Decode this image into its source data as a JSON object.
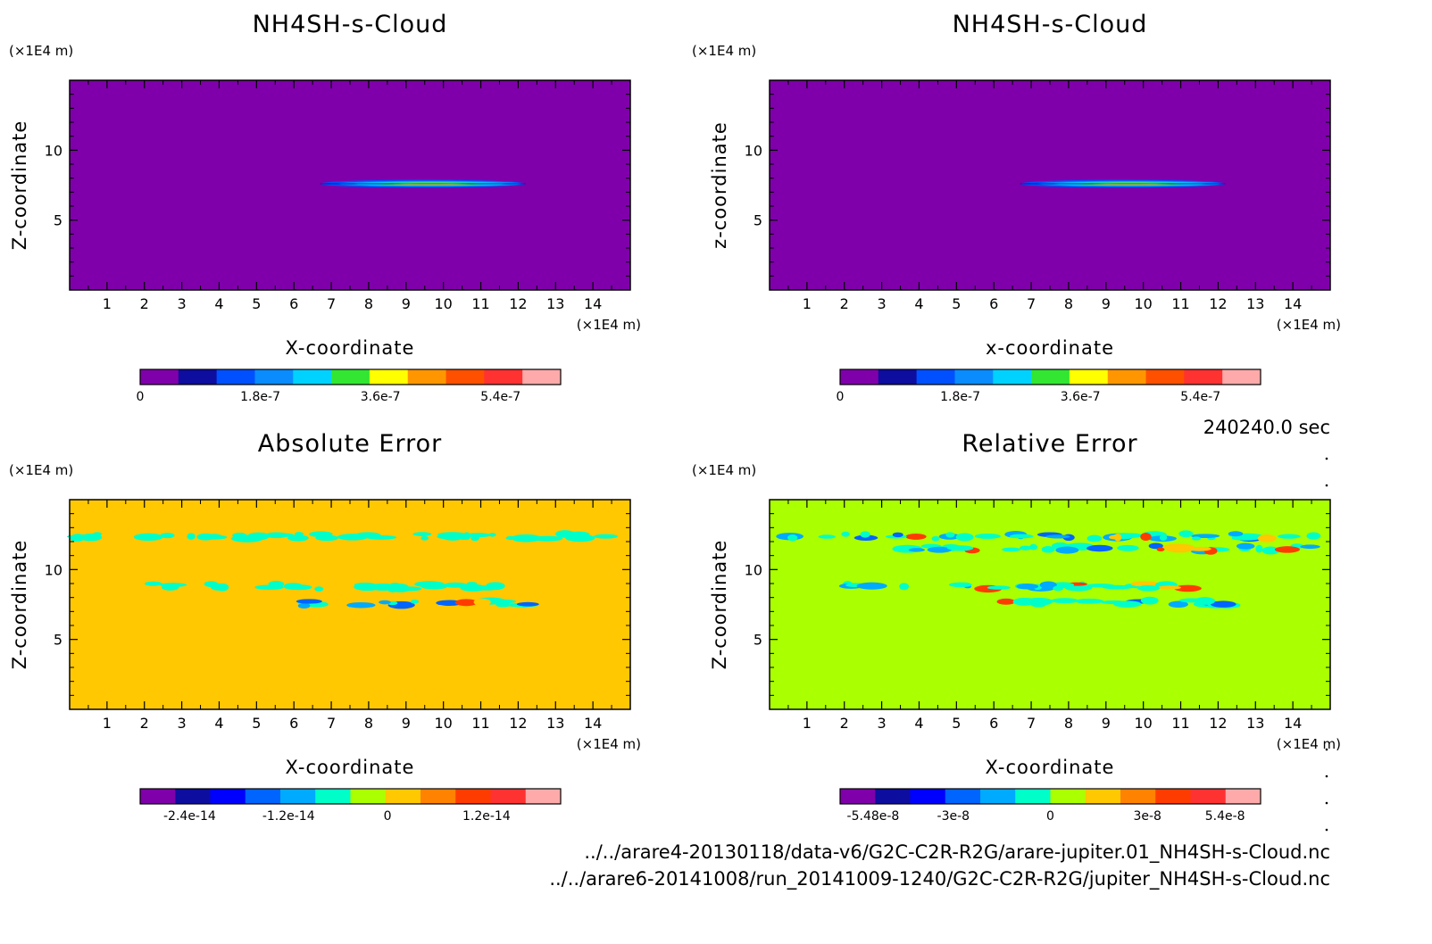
{
  "time_label": "240240.0 sec",
  "file_paths": [
    "../../arare4-20130118/data-v6/G2C-C2R-R2G/arare-jupiter.01_NH4SH-s-Cloud.nc",
    "../../arare6-20141008/run_20141009-1240/G2C-C2R-R2G/jupiter_NH4SH-s-Cloud.nc"
  ],
  "chart_data": [
    {
      "type": "heatmap",
      "title": "NH4SH-s-Cloud",
      "xlabel": "X-coordinate",
      "ylabel": "Z-coordinate",
      "x_unit": "(×1E4 m)",
      "y_unit": "(×1E4 m)",
      "xlim": [
        0,
        15
      ],
      "ylim": [
        0,
        15
      ],
      "x_ticks": [
        1,
        2,
        3,
        4,
        5,
        6,
        7,
        8,
        9,
        10,
        11,
        12,
        13,
        14
      ],
      "y_ticks": [
        5,
        10
      ],
      "background_value": 0,
      "colorbar": {
        "colors": [
          "#7f00aa",
          "#0d0da0",
          "#0050ff",
          "#0a8cff",
          "#00d2ff",
          "#32e632",
          "#ffff00",
          "#ff9600",
          "#ff5000",
          "#ff3232",
          "#ffaaaa"
        ],
        "tick_labels": [
          "0",
          "1.8e-7",
          "3.6e-7",
          "5.4e-7"
        ],
        "tick_values": [
          0,
          1.8e-07,
          3.6e-07,
          5.4e-07
        ],
        "vmin": 0,
        "vmax": 6.3e-07
      },
      "features": [
        {
          "x_range": [
            6.7,
            12.2
          ],
          "z": 7.6,
          "peak": 3.6e-07
        }
      ]
    },
    {
      "type": "heatmap",
      "title": "NH4SH-s-Cloud",
      "xlabel": "x-coordinate",
      "ylabel": "z-coordinate",
      "x_unit": "(×1E4 m)",
      "y_unit": "(×1E4 m)",
      "xlim": [
        0,
        15
      ],
      "ylim": [
        0,
        15
      ],
      "x_ticks": [
        1,
        2,
        3,
        4,
        5,
        6,
        7,
        8,
        9,
        10,
        11,
        12,
        13,
        14
      ],
      "y_ticks": [
        5,
        10
      ],
      "background_value": 0,
      "colorbar": {
        "colors": [
          "#7f00aa",
          "#0d0da0",
          "#0050ff",
          "#0a8cff",
          "#00d2ff",
          "#32e632",
          "#ffff00",
          "#ff9600",
          "#ff5000",
          "#ff3232",
          "#ffaaaa"
        ],
        "tick_labels": [
          "0",
          "1.8e-7",
          "3.6e-7",
          "5.4e-7"
        ],
        "tick_values": [
          0,
          1.8e-07,
          3.6e-07,
          5.4e-07
        ],
        "vmin": 0,
        "vmax": 6.3e-07
      },
      "features": [
        {
          "x_range": [
            6.7,
            12.2
          ],
          "z": 7.6,
          "peak": 3.6e-07
        }
      ]
    },
    {
      "type": "heatmap",
      "title": "Absolute Error",
      "xlabel": "X-coordinate",
      "ylabel": "Z-coordinate",
      "x_unit": "(×1E4 m)",
      "y_unit": "(×1E4 m)",
      "xlim": [
        0,
        15
      ],
      "ylim": [
        0,
        15
      ],
      "x_ticks": [
        1,
        2,
        3,
        4,
        5,
        6,
        7,
        8,
        9,
        10,
        11,
        12,
        13,
        14
      ],
      "y_ticks": [
        5,
        10
      ],
      "background_value": 0,
      "colorbar": {
        "colors": [
          "#7f00aa",
          "#0d0da0",
          "#0000ff",
          "#0064ff",
          "#00aaff",
          "#00ffc8",
          "#aaff00",
          "#ffc800",
          "#ff8200",
          "#ff3c00",
          "#ff3232",
          "#ffaaaa"
        ],
        "tick_labels": [
          "-2.4e-14",
          "-1.2e-14",
          "0",
          "1.2e-14"
        ],
        "tick_values": [
          -2.4e-14,
          -1.2e-14,
          0,
          1.2e-14
        ],
        "vmin": -3e-14,
        "vmax": 2.1e-14
      },
      "features": [
        {
          "x_range": [
            0.2,
            14.8
          ],
          "z": 12.4,
          "kind": "weak-negative"
        },
        {
          "x_range": [
            2.2,
            11.5
          ],
          "z": 8.8,
          "kind": "weak-negative"
        },
        {
          "x_range": [
            6.2,
            12.5
          ],
          "z": 7.6,
          "kind": "mixed"
        }
      ]
    },
    {
      "type": "heatmap",
      "title": "Relative Error",
      "xlabel": "X-coordinate",
      "ylabel": "Z-coordinate",
      "x_unit": "(×1E4 m)",
      "y_unit": "(×1E4 m)",
      "xlim": [
        0,
        15
      ],
      "ylim": [
        0,
        15
      ],
      "x_ticks": [
        1,
        2,
        3,
        4,
        5,
        6,
        7,
        8,
        9,
        10,
        11,
        12,
        13,
        14
      ],
      "y_ticks": [
        5,
        10
      ],
      "background_value": 0,
      "colorbar": {
        "colors": [
          "#7f00aa",
          "#0d0da0",
          "#0000ff",
          "#0064ff",
          "#00aaff",
          "#00ffc8",
          "#aaff00",
          "#ffc800",
          "#ff8200",
          "#ff3c00",
          "#ff3232",
          "#ffaaaa"
        ],
        "tick_labels": [
          "-5.48e-8",
          "-3e-8",
          "0",
          "3e-8",
          "5.4e-8"
        ],
        "tick_values": [
          -5.48e-08,
          -3e-08,
          0,
          3e-08,
          5.4e-08
        ],
        "vmin": -6.5e-08,
        "vmax": 6.5e-08
      },
      "features": [
        {
          "x_range": [
            0.2,
            14.8
          ],
          "z": 12.4,
          "kind": "mixed"
        },
        {
          "x_range": [
            3.3,
            14.8
          ],
          "z": 11.5,
          "kind": "mixed"
        },
        {
          "x_range": [
            1.8,
            11.5
          ],
          "z": 8.8,
          "kind": "mixed"
        },
        {
          "x_range": [
            6.2,
            12.5
          ],
          "z": 7.6,
          "kind": "mixed"
        }
      ]
    }
  ]
}
